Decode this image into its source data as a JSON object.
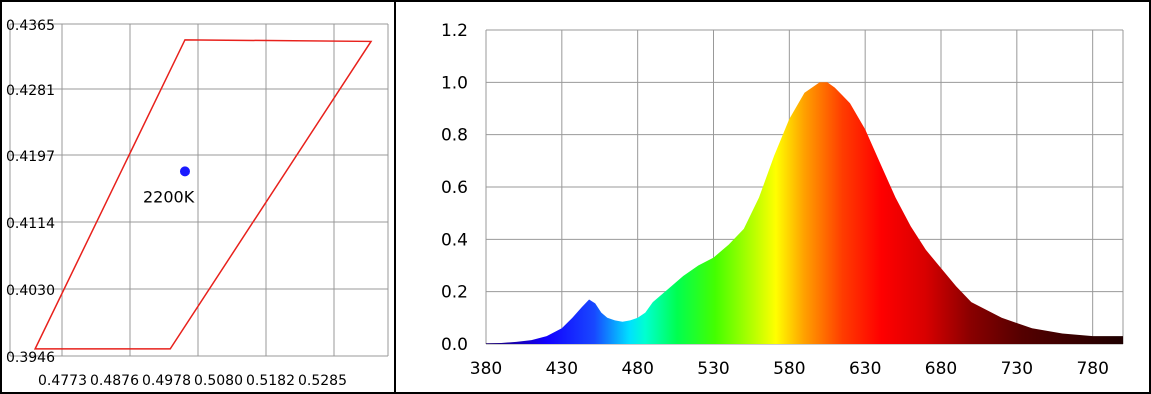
{
  "chart_data": [
    {
      "type": "scatter",
      "xticks": [
        "0.4773",
        "0.4876",
        "0.4978",
        "0.5080",
        "0.5182",
        "0.5285"
      ],
      "yticks": [
        "0.4365",
        "0.4281",
        "0.4197",
        "0.4114",
        "0.4030",
        "0.3946"
      ],
      "xlim": [
        0.4773,
        0.5285
      ],
      "ylim": [
        0.3946,
        0.4365
      ],
      "grid": true,
      "quadrilateral": {
        "color": "#e8211c",
        "points": [
          [
            0.501,
            0.4345
          ],
          [
            0.5262,
            0.4343
          ],
          [
            0.499,
            0.3955
          ],
          [
            0.4807,
            0.3955
          ]
        ]
      },
      "point": {
        "x": 0.501,
        "y": 0.4179,
        "label": "2200K",
        "color": "#1a1aff"
      }
    },
    {
      "type": "area",
      "xlim": [
        380,
        800
      ],
      "ylim": [
        0,
        1.2
      ],
      "xticks": [
        380,
        430,
        480,
        530,
        580,
        630,
        680,
        730,
        780
      ],
      "yticks": [
        "0.0",
        "0.2",
        "0.4",
        "0.6",
        "0.8",
        "1.0",
        "1.2"
      ],
      "grid": true,
      "series": [
        {
          "x": [
            380,
            390,
            400,
            410,
            420,
            430,
            437,
            443,
            448,
            452,
            456,
            460,
            465,
            470,
            475,
            480,
            485,
            490,
            500,
            510,
            520,
            530,
            540,
            550,
            560,
            570,
            580,
            590,
            600,
            605,
            610,
            615,
            620,
            630,
            640,
            650,
            660,
            670,
            680,
            690,
            700,
            720,
            740,
            760,
            780,
            800
          ],
          "values": [
            0.003,
            0.004,
            0.008,
            0.015,
            0.03,
            0.06,
            0.1,
            0.14,
            0.17,
            0.155,
            0.12,
            0.1,
            0.09,
            0.085,
            0.09,
            0.1,
            0.12,
            0.16,
            0.21,
            0.26,
            0.3,
            0.33,
            0.38,
            0.44,
            0.56,
            0.72,
            0.86,
            0.96,
            1.0,
            1.0,
            0.98,
            0.95,
            0.92,
            0.82,
            0.69,
            0.56,
            0.45,
            0.36,
            0.29,
            0.22,
            0.16,
            0.1,
            0.06,
            0.04,
            0.03,
            0.03
          ]
        }
      ]
    }
  ]
}
